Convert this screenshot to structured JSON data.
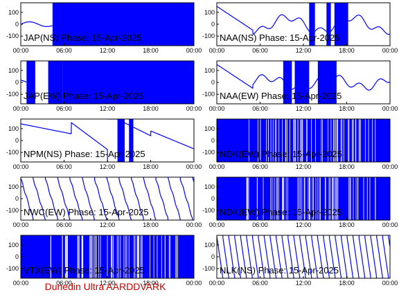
{
  "footer": "Dunedin Ultra AARDDVARK",
  "colors": {
    "trace": "#0000ff",
    "axes": "#000000",
    "footer": "#cc0000"
  },
  "chart_data": [
    {
      "type": "line",
      "title": "JAP(NS) Phase: 15-Apr-2025",
      "ylim": [
        -180,
        180
      ],
      "yticks": [
        "100",
        "0",
        "-100"
      ],
      "xticks": [
        "00:00",
        "06:00",
        "12:00",
        "18:00",
        "00:00"
      ],
      "xlim_hours": [
        0,
        24
      ],
      "pattern": "dense",
      "dense": [
        [
          4.4,
          7.2
        ],
        [
          7.2,
          24
        ]
      ]
    },
    {
      "type": "line",
      "title": "NAA(NS) Phase: 15-Apr-2025",
      "ylim": [
        -180,
        180
      ],
      "yticks": [
        "100",
        "0",
        "-100"
      ],
      "xticks": [
        "00:00",
        "06:00",
        "12:00",
        "18:00",
        "00:00"
      ],
      "xlim_hours": [
        0,
        24
      ],
      "pattern": "mixed",
      "dense": [
        [
          12.8,
          13.6
        ],
        [
          15.2,
          15.8
        ],
        [
          16.3,
          18.2
        ]
      ]
    },
    {
      "type": "line",
      "title": "JAP(EW) Phase: 15-Apr-2025",
      "ylim": [
        -180,
        180
      ],
      "yticks": [
        "100",
        "0",
        "-100"
      ],
      "xticks": [
        "00:00",
        "06:00",
        "12:00",
        "18:00",
        "00:00"
      ],
      "xlim_hours": [
        0,
        24
      ],
      "pattern": "dense",
      "dense": [
        [
          0.8,
          2.0
        ],
        [
          3.8,
          5.8
        ],
        [
          5.8,
          24
        ]
      ]
    },
    {
      "type": "line",
      "title": "NAA(EW) Phase: 15-Apr-2025",
      "ylim": [
        -180,
        180
      ],
      "yticks": [
        "100",
        "0",
        "-100"
      ],
      "xticks": [
        "00:00",
        "06:00",
        "12:00",
        "18:00",
        "00:00"
      ],
      "xlim_hours": [
        0,
        24
      ],
      "pattern": "mixed",
      "dense": [
        [
          9.2,
          10.4
        ],
        [
          10.8,
          12.8
        ],
        [
          14.0,
          16.6
        ]
      ]
    },
    {
      "type": "line",
      "title": "NPM(NS) Phase: 15-Apr-2025",
      "ylim": [
        -180,
        180
      ],
      "yticks": [
        "100",
        "0",
        "-100"
      ],
      "xticks": [
        "00:00",
        "06:00",
        "12:00",
        "18:00",
        "00:00"
      ],
      "xlim_hours": [
        0,
        24
      ],
      "pattern": "drift",
      "dense": [
        [
          13.4,
          14.4
        ],
        [
          15.0,
          15.6
        ]
      ]
    },
    {
      "type": "line",
      "title": "NDK(EW) Phase: 15-Apr-2025",
      "ylim": [
        -180,
        180
      ],
      "yticks": [
        "100",
        "0",
        "-100"
      ],
      "xticks": [
        "00:00",
        "06:00",
        "12:00",
        "18:00",
        "00:00"
      ],
      "xlim_hours": [
        0,
        24
      ],
      "pattern": "dense",
      "dense": [
        [
          0,
          24
        ]
      ]
    },
    {
      "type": "line",
      "title": "NWC(EW) Phase: 15-Apr-2025",
      "ylim": [
        -180,
        180
      ],
      "yticks": [
        "100",
        "0",
        "-100"
      ],
      "xticks": [
        "00:00",
        "06:00",
        "12:00",
        "18:00",
        "00:00"
      ],
      "xlim_hours": [
        0,
        24
      ],
      "pattern": "sawtooth",
      "dense": []
    },
    {
      "type": "line",
      "title": "NDK(EW) Phase: 15-Apr-2025",
      "ylim": [
        -180,
        180
      ],
      "yticks": [
        "100",
        "0",
        "-100"
      ],
      "xticks": [
        "00:00",
        "06:00",
        "12:00",
        "18:00",
        "00:00"
      ],
      "xlim_hours": [
        0,
        24
      ],
      "pattern": "dense",
      "dense": [
        [
          0,
          24
        ]
      ]
    },
    {
      "type": "line",
      "title": "VTX(EW) Phase: 15-Apr-2025",
      "ylim": [
        -180,
        180
      ],
      "yticks": [
        "100",
        "0",
        "-100"
      ],
      "xticks": [
        "00:00",
        "06:00",
        "12:00",
        "18:00",
        "00:00"
      ],
      "xlim_hours": [
        0,
        24
      ],
      "pattern": "dense",
      "dense": [
        [
          0,
          24
        ]
      ]
    },
    {
      "type": "line",
      "title": "NLK(NS) Phase: 15-Apr-2025",
      "ylim": [
        -180,
        180
      ],
      "yticks": [
        "100",
        "0",
        "-100"
      ],
      "xticks": [
        "00:00",
        "06:00",
        "12:00",
        "18:00",
        "00:00"
      ],
      "xlim_hours": [
        0,
        24
      ],
      "pattern": "fast-sawtooth",
      "dense": []
    }
  ]
}
